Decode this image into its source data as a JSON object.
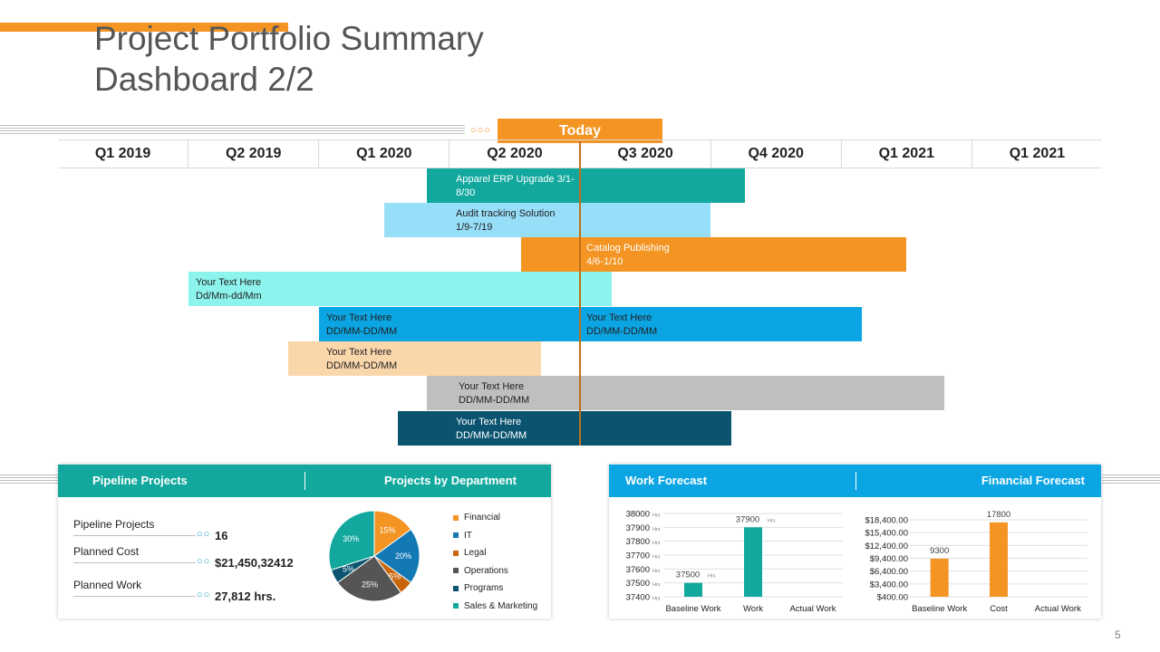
{
  "title": {
    "line1": "Project Portfolio Summary",
    "line2": "Dashboard 2/2"
  },
  "colors": {
    "orange": "#F39423",
    "teal": "#12A89D",
    "blue": "#0BA5E4",
    "grey": "#BFBFBF",
    "navy": "#0B5470"
  },
  "timeline": {
    "dots": "○○○",
    "today_label": "Today",
    "quarters": [
      "Q1 2019",
      "Q2 2019",
      "Q1 2020",
      "Q2 2020",
      "Q3 2020",
      "Q4 2020",
      "Q1 2021",
      "Q1 2021"
    ],
    "bars": [
      {
        "line1": "Apparel ERP Upgrade 3/1-",
        "line2": "8/30",
        "color": "#12A89D",
        "text_color": "#ffffff"
      },
      {
        "line1": "Audit tracking Solution",
        "line2": "1/9-7/19",
        "color": "#97DEF8",
        "text_color": "#222222"
      },
      {
        "line1": "Catalog Publishing",
        "line2": " 4/6-1/10",
        "color": "#F39423",
        "text_color": "#ffffff"
      },
      {
        "line1": "Your Text Here",
        "line2": "Dd/Mm-dd/Mm",
        "color": "#8DF4ED",
        "text_color": "#222222"
      },
      {
        "line1": "Your Text Here",
        "line2": "DD/MM-DD/MM",
        "line3": "Your Text Here",
        "line4": "DD/MM-DD/MM",
        "color": "#0BA5E4",
        "text_color": "#222222"
      },
      {
        "line1": "Your Text Here",
        "line2": "DD/MM-DD/MM",
        "color": "#FAD6AB",
        "text_color": "#222222"
      },
      {
        "line1": "Your Text Here",
        "line2": "DD/MM-DD/MM",
        "color": "#BFBFBF",
        "text_color": "#222222"
      },
      {
        "line1": "Your Text Here",
        "line2": "DD/MM-DD/MM",
        "color": "#0B5470",
        "text_color": "#ffffff"
      }
    ]
  },
  "left_panel": {
    "head_left": "Pipeline Projects",
    "head_right": "Projects by Department",
    "dots": "○○",
    "metrics": [
      {
        "label": "Pipeline Projects",
        "value": "16"
      },
      {
        "label": "Planned Cost",
        "value": "$21,450,32412"
      },
      {
        "label": "Planned Work",
        "value": "27,812  hrs."
      }
    ]
  },
  "right_panel": {
    "head_left": "Work Forecast",
    "head_right": "Financial Forecast"
  },
  "chart_data": [
    {
      "type": "pie",
      "title": "Projects by Department",
      "categories": [
        "Financial",
        "IT",
        "Legal",
        "Operations",
        "Programs",
        "Sales & Marketing"
      ],
      "values": [
        15,
        20,
        5,
        25,
        5,
        30
      ],
      "labels": [
        "15%",
        "20%",
        "5%",
        "25%",
        "5%",
        "30%"
      ],
      "colors": [
        "#F39423",
        "#1379B5",
        "#C8650A",
        "#555555",
        "#0B5470",
        "#12A89D"
      ]
    },
    {
      "type": "bar",
      "title": "Work Forecast",
      "categories": [
        "Baseline Work",
        "Work",
        "Actual Work"
      ],
      "values": [
        37500,
        37900,
        null
      ],
      "data_labels": [
        "37500",
        "37900",
        ""
      ],
      "unit": "Hrs",
      "ylim": [
        37400,
        38000
      ],
      "yticks": [
        "38000",
        "37900",
        "37800",
        "37700",
        "37600",
        "37500",
        "37400"
      ],
      "color": "#12A89D"
    },
    {
      "type": "bar",
      "title": "Financial Forecast",
      "categories": [
        "Baseline Work",
        "Cost",
        "Actual Work"
      ],
      "values": [
        9300,
        17800,
        null
      ],
      "data_labels": [
        "9300",
        "17800",
        ""
      ],
      "ylim": [
        400,
        18400
      ],
      "yticks": [
        "$18,400.00",
        "$15,400.00",
        "$12,400.00",
        "$9,400.00",
        "$6,400.00",
        "$3,400.00",
        "$400.00"
      ],
      "color": "#F39423"
    }
  ],
  "page_number": "5"
}
